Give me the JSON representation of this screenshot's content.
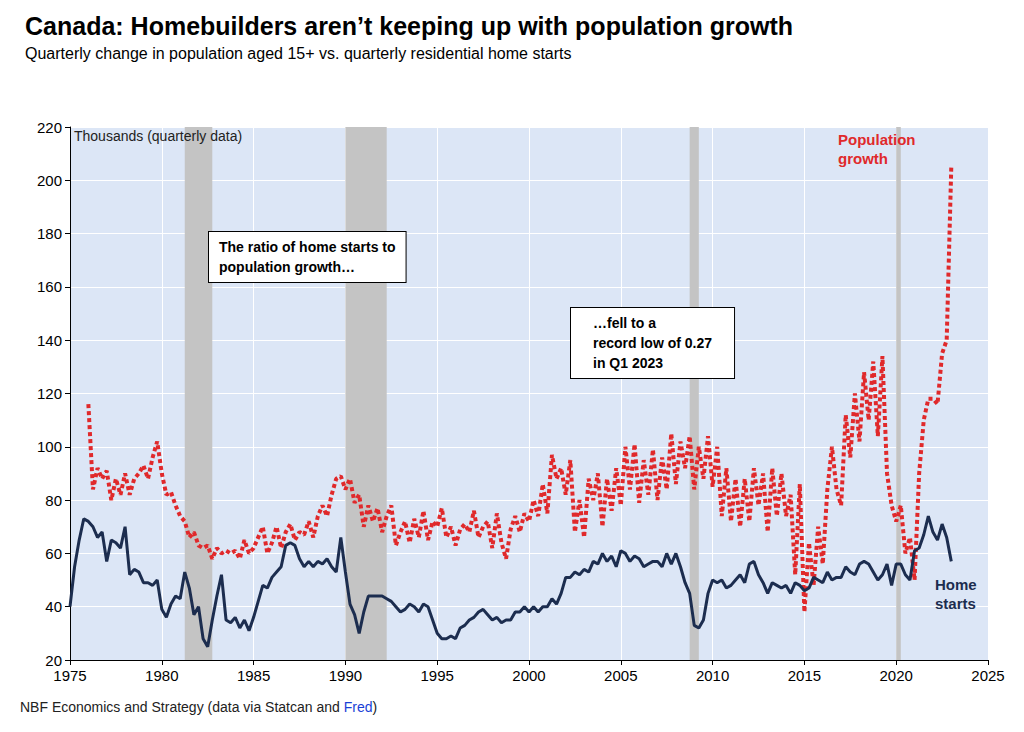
{
  "chart_data": {
    "type": "line",
    "title": "Canada: Homebuilders aren’t keeping up with population growth",
    "subtitle": "Quarterly change in population aged 15+ vs. quarterly residential home starts",
    "ylabel": "Thousands (quarterly data)",
    "source": "NBF Economics and Strategy (data via Statcan and Fred)",
    "source_link": "Fred",
    "annotations": [
      "The ratio of home starts to\npopulation growth…",
      "…fell to a\nrecord low of 0.27\nin Q1 2023"
    ],
    "xlim": [
      1975,
      2025
    ],
    "xticks": [
      1975,
      1980,
      1985,
      1990,
      1995,
      2000,
      2005,
      2010,
      2015,
      2020,
      2025
    ],
    "ylim": [
      20,
      220
    ],
    "yticks": [
      20,
      40,
      60,
      80,
      100,
      120,
      140,
      160,
      180,
      200,
      220
    ],
    "grid": true,
    "recessions": [
      [
        1981.25,
        1982.75
      ],
      [
        1990.0,
        1992.25
      ],
      [
        2008.75,
        2009.25
      ],
      [
        2020.0,
        2020.25
      ]
    ],
    "x": [
      1975,
      1975.25,
      1975.5,
      1975.75,
      1976,
      1976.25,
      1976.5,
      1976.75,
      1977,
      1977.25,
      1977.5,
      1977.75,
      1978,
      1978.25,
      1978.5,
      1978.75,
      1979,
      1979.25,
      1979.5,
      1979.75,
      1980,
      1980.25,
      1980.5,
      1980.75,
      1981,
      1981.25,
      1981.5,
      1981.75,
      1982,
      1982.25,
      1982.5,
      1982.75,
      1983,
      1983.25,
      1983.5,
      1983.75,
      1984,
      1984.25,
      1984.5,
      1984.75,
      1985,
      1985.25,
      1985.5,
      1985.75,
      1986,
      1986.25,
      1986.5,
      1986.75,
      1987,
      1987.25,
      1987.5,
      1987.75,
      1988,
      1988.25,
      1988.5,
      1988.75,
      1989,
      1989.25,
      1989.5,
      1989.75,
      1990,
      1990.25,
      1990.5,
      1990.75,
      1991,
      1991.25,
      1991.5,
      1991.75,
      1992,
      1992.25,
      1992.5,
      1992.75,
      1993,
      1993.25,
      1993.5,
      1993.75,
      1994,
      1994.25,
      1994.5,
      1994.75,
      1995,
      1995.25,
      1995.5,
      1995.75,
      1996,
      1996.25,
      1996.5,
      1996.75,
      1997,
      1997.25,
      1997.5,
      1997.75,
      1998,
      1998.25,
      1998.5,
      1998.75,
      1999,
      1999.25,
      1999.5,
      1999.75,
      2000,
      2000.25,
      2000.5,
      2000.75,
      2001,
      2001.25,
      2001.5,
      2001.75,
      2002,
      2002.25,
      2002.5,
      2002.75,
      2003,
      2003.25,
      2003.5,
      2003.75,
      2004,
      2004.25,
      2004.5,
      2004.75,
      2005,
      2005.25,
      2005.5,
      2005.75,
      2006,
      2006.25,
      2006.5,
      2006.75,
      2007,
      2007.25,
      2007.5,
      2007.75,
      2008,
      2008.25,
      2008.5,
      2008.75,
      2009,
      2009.25,
      2009.5,
      2009.75,
      2010,
      2010.25,
      2010.5,
      2010.75,
      2011,
      2011.25,
      2011.5,
      2011.75,
      2012,
      2012.25,
      2012.5,
      2012.75,
      2013,
      2013.25,
      2013.5,
      2013.75,
      2014,
      2014.25,
      2014.5,
      2014.75,
      2015,
      2015.25,
      2015.5,
      2015.75,
      2016,
      2016.25,
      2016.5,
      2016.75,
      2017,
      2017.25,
      2017.5,
      2017.75,
      2018,
      2018.25,
      2018.5,
      2018.75,
      2019,
      2019.25,
      2019.5,
      2019.75,
      2020,
      2020.25,
      2020.5,
      2020.75,
      2021,
      2021.25,
      2021.5,
      2021.75,
      2022,
      2022.25,
      2022.5,
      2022.75,
      2023
    ],
    "series": [
      {
        "name": "Population growth",
        "color": "#e0292b",
        "line_style": "dotted",
        "values": [
          null,
          null,
          null,
          null,
          116,
          84,
          92,
          88,
          91,
          80,
          88,
          82,
          90,
          82,
          88,
          90,
          93,
          88,
          96,
          102,
          90,
          82,
          83,
          78,
          74,
          72,
          66,
          68,
          63,
          62,
          63,
          58,
          62,
          60,
          61,
          60,
          61,
          58,
          65,
          60,
          62,
          66,
          70,
          60,
          64,
          70,
          62,
          68,
          71,
          65,
          68,
          67,
          72,
          66,
          74,
          78,
          74,
          82,
          88,
          89,
          84,
          88,
          79,
          82,
          70,
          78,
          72,
          77,
          68,
          74,
          78,
          63,
          68,
          72,
          64,
          73,
          66,
          76,
          65,
          72,
          70,
          77,
          66,
          70,
          63,
          69,
          71,
          68,
          76,
          66,
          70,
          72,
          62,
          75,
          64,
          58,
          69,
          74,
          68,
          75,
          72,
          80,
          74,
          86,
          75,
          97,
          88,
          92,
          82,
          95,
          68,
          80,
          66,
          88,
          80,
          90,
          70,
          88,
          76,
          92,
          78,
          100,
          84,
          101,
          79,
          95,
          82,
          99,
          80,
          96,
          84,
          105,
          86,
          102,
          92,
          104,
          84,
          100,
          88,
          104,
          85,
          100,
          74,
          92,
          72,
          88,
          70,
          88,
          72,
          92,
          78,
          90,
          68,
          92,
          74,
          90,
          74,
          82,
          52,
          86,
          38,
          64,
          48,
          70,
          56,
          84,
          100,
          84,
          78,
          112,
          96,
          120,
          102,
          128,
          110,
          132,
          104,
          134,
          90,
          78,
          72,
          78,
          60,
          66,
          50,
          90,
          110,
          118,
          118,
          116,
          135,
          140,
          205
        ]
      },
      {
        "name": "Home starts",
        "color": "#1c2d4f",
        "line_style": "solid",
        "values": [
          40,
          55,
          65,
          73,
          72,
          70,
          66,
          68,
          57,
          65,
          64,
          62,
          70,
          52,
          54,
          53,
          49,
          49,
          48,
          50,
          39,
          36,
          41,
          44,
          43,
          53,
          47,
          37,
          40,
          28,
          25,
          35,
          44,
          52,
          35,
          34,
          36,
          32,
          35,
          31,
          36,
          42,
          48,
          47,
          51,
          53,
          55,
          63,
          64,
          63,
          58,
          55,
          57,
          55,
          57,
          56,
          58,
          55,
          53,
          66,
          53,
          41,
          37,
          30,
          38,
          44,
          44,
          44,
          44,
          43,
          42,
          40,
          38,
          39,
          41,
          40,
          38,
          41,
          40,
          35,
          30,
          28,
          28,
          29,
          28,
          32,
          33,
          35,
          36,
          38,
          39,
          37,
          35,
          36,
          34,
          35,
          35,
          38,
          38,
          40,
          38,
          40,
          38,
          40,
          40,
          43,
          41,
          45,
          51,
          51,
          53,
          52,
          54,
          53,
          57,
          56,
          60,
          57,
          59,
          55,
          61,
          60,
          57,
          59,
          58,
          55,
          56,
          57,
          57,
          55,
          60,
          56,
          60,
          55,
          49,
          45,
          33,
          32,
          35,
          45,
          50,
          49,
          50,
          47,
          48,
          50,
          52,
          49,
          56,
          57,
          52,
          49,
          45,
          49,
          48,
          47,
          48,
          45,
          49,
          48,
          46,
          47,
          51,
          50,
          49,
          53,
          50,
          51,
          51,
          55,
          53,
          52,
          56,
          57,
          56,
          53,
          50,
          52,
          56,
          48,
          56,
          56,
          52,
          50,
          61,
          62,
          67,
          74,
          68,
          65,
          71,
          66,
          57
        ]
      }
    ]
  }
}
